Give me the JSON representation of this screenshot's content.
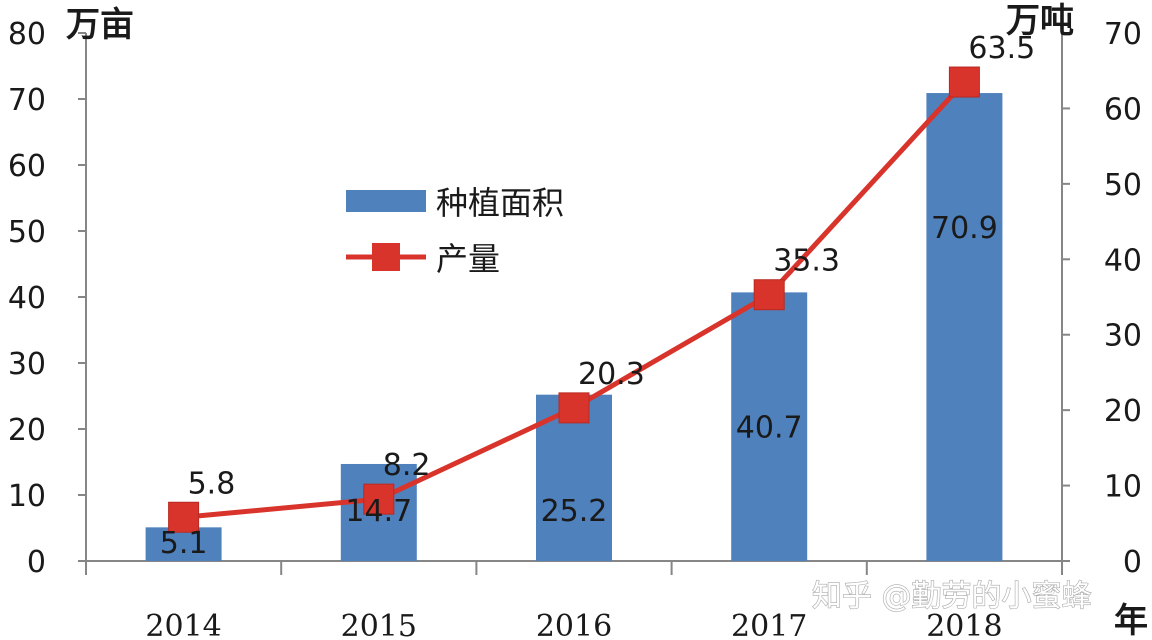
{
  "chart_data": {
    "type": "bar",
    "categories": [
      "2014",
      "2015",
      "2016",
      "2017",
      "2018"
    ],
    "series": [
      {
        "name": "种植面积",
        "type": "bar",
        "axis": "left",
        "values": [
          5.1,
          14.7,
          25.2,
          40.7,
          70.9
        ],
        "color": "#4f81bd"
      },
      {
        "name": "产量",
        "type": "line",
        "axis": "right",
        "values": [
          5.8,
          8.2,
          20.3,
          35.3,
          63.5
        ],
        "color": "#d9342b",
        "marker": "square"
      }
    ],
    "y_left": {
      "unit_label": "万亩",
      "lim": [
        0,
        80
      ],
      "ticks": [
        0,
        10,
        20,
        30,
        40,
        50,
        60,
        70,
        80
      ]
    },
    "y_right": {
      "unit_label": "万吨",
      "lim": [
        0,
        70
      ],
      "ticks": [
        0,
        10,
        20,
        30,
        40,
        50,
        60,
        70
      ]
    },
    "x_unit_label": "年",
    "legend": {
      "position": "upper-left-center"
    },
    "grid": false
  },
  "watermark": {
    "text": "知乎 @勤劳的小蜜蜂"
  }
}
